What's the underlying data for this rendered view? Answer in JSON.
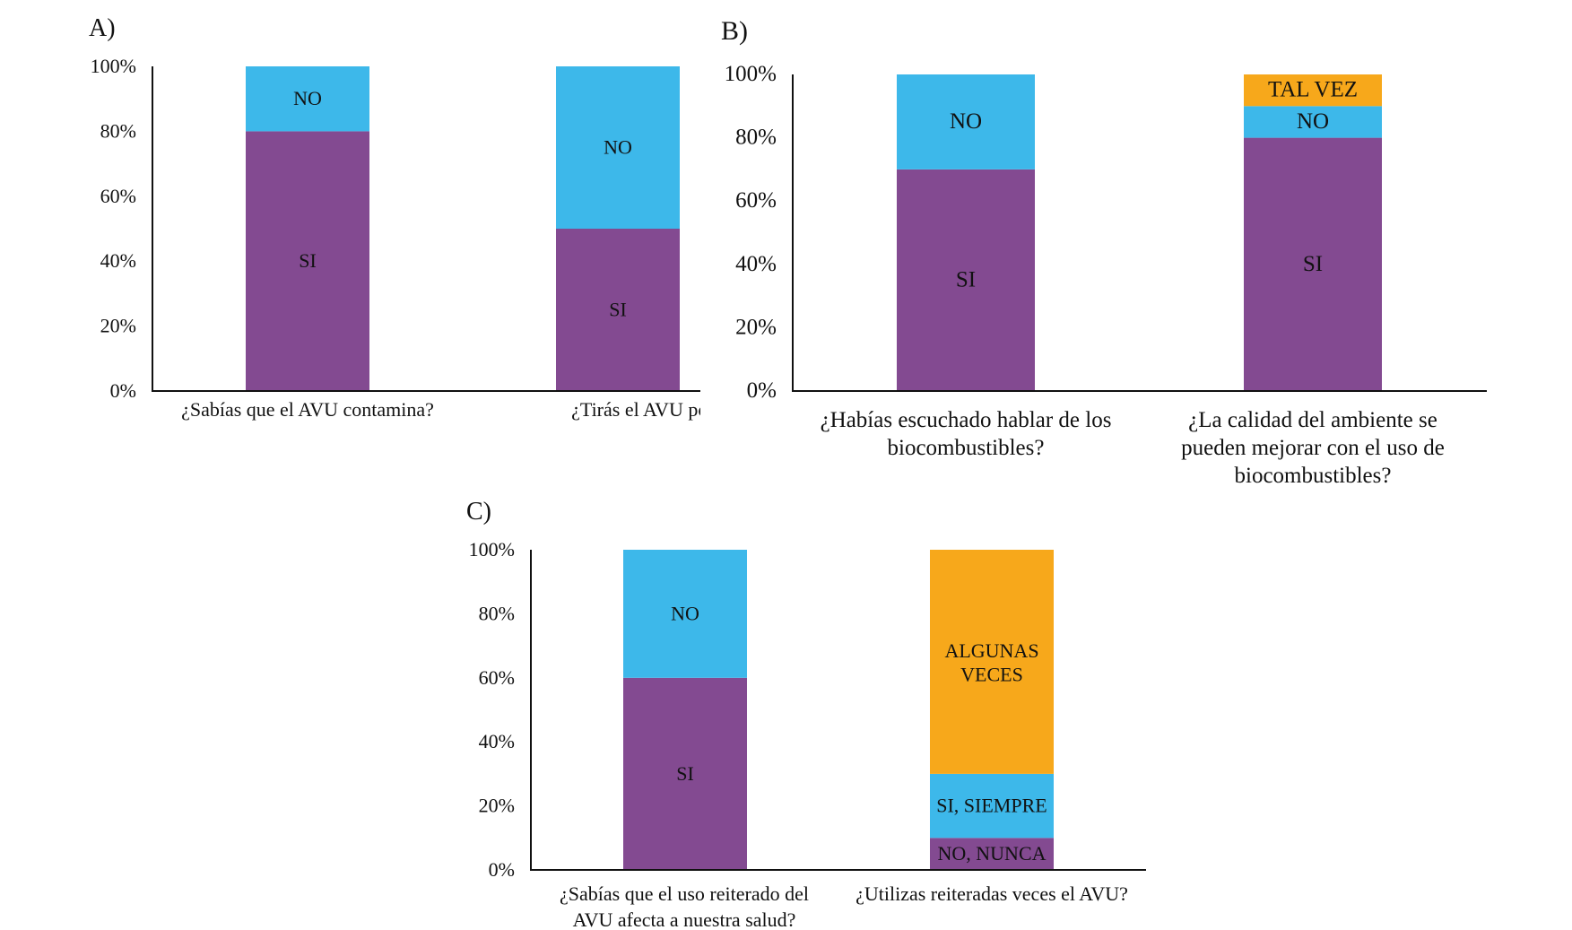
{
  "colors": {
    "si": "#834A91",
    "no": "#3DB8EA",
    "other": "#F7A81B"
  },
  "chart_data": [
    {
      "type": "bar",
      "stacked": true,
      "panel_label": "A)",
      "yticks": [
        "0%",
        "20%",
        "40%",
        "60%",
        "80%",
        "100%"
      ],
      "ylim": [
        0,
        100
      ],
      "categories": [
        [
          "¿Sabías que el AVU contamina?"
        ],
        [
          "¿Tirás el AVU por el des"
        ]
      ],
      "bars": [
        [
          {
            "name": "SI",
            "value": 80,
            "color": "si"
          },
          {
            "name": "NO",
            "value": 20,
            "color": "no"
          }
        ],
        [
          {
            "name": "SI",
            "value": 50,
            "color": "si"
          },
          {
            "name": "NO",
            "value": 50,
            "color": "no"
          }
        ]
      ]
    },
    {
      "type": "bar",
      "stacked": true,
      "panel_label": "B)",
      "yticks": [
        "0%",
        "20%",
        "40%",
        "60%",
        "80%",
        "100%"
      ],
      "ylim": [
        0,
        100
      ],
      "categories": [
        [
          "¿Habías escuchado hablar de los",
          "biocombustibles?"
        ],
        [
          "¿La calidad del ambiente se",
          "pueden mejorar con el uso de",
          "biocombustibles?"
        ]
      ],
      "bars": [
        [
          {
            "name": "SI",
            "value": 70,
            "color": "si"
          },
          {
            "name": "NO",
            "value": 30,
            "color": "no"
          }
        ],
        [
          {
            "name": "SI",
            "value": 80,
            "color": "si"
          },
          {
            "name": "NO",
            "value": 10,
            "color": "no"
          },
          {
            "name": "TAL VEZ",
            "value": 10,
            "color": "other"
          }
        ]
      ]
    },
    {
      "type": "bar",
      "stacked": true,
      "panel_label": "C)",
      "yticks": [
        "0%",
        "20%",
        "40%",
        "60%",
        "80%",
        "100%"
      ],
      "ylim": [
        0,
        100
      ],
      "categories": [
        [
          "¿Sabías que el uso reiterado del",
          "AVU afecta a nuestra salud?"
        ],
        [
          "¿Utilizas reiteradas veces el AVU?"
        ]
      ],
      "bars": [
        [
          {
            "name": "SI",
            "value": 60,
            "color": "si"
          },
          {
            "name": "NO",
            "value": 40,
            "color": "no"
          }
        ],
        [
          {
            "name": "NO, NUNCA",
            "value": 10,
            "color": "si"
          },
          {
            "name": "SI, SIEMPRE",
            "value": 20,
            "color": "no"
          },
          {
            "name": "ALGUNAS VECES",
            "value": 70,
            "color": "other",
            "lines": [
              "ALGUNAS",
              "VECES"
            ]
          }
        ]
      ]
    }
  ]
}
